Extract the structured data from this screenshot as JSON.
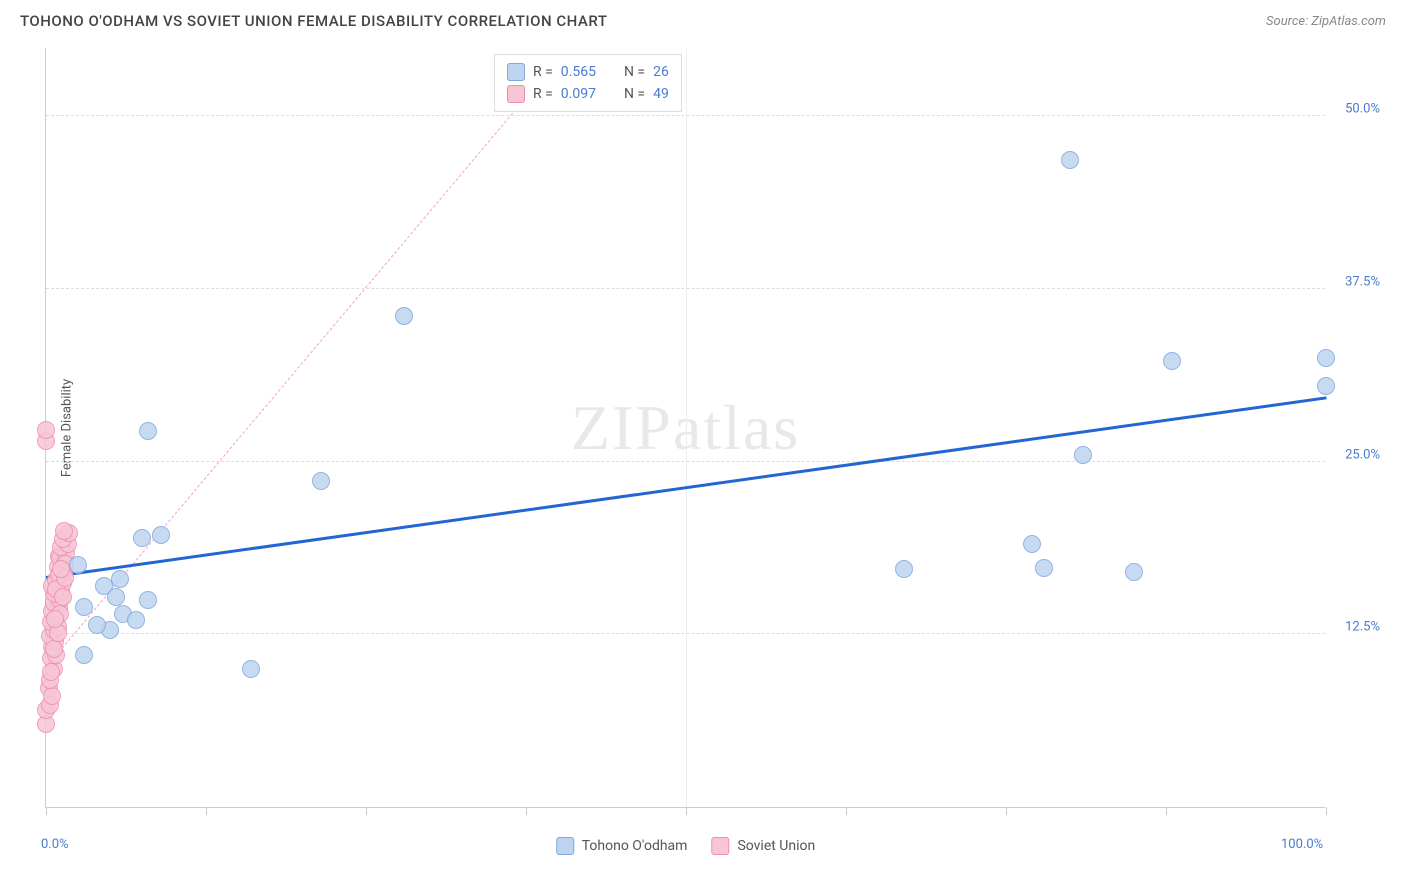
{
  "header": {
    "title": "TOHONO O'ODHAM VS SOVIET UNION FEMALE DISABILITY CORRELATION CHART",
    "source": "Source: ZipAtlas.com"
  },
  "chart": {
    "type": "scatter",
    "ylabel": "Female Disability",
    "watermark_zip": "ZIP",
    "watermark_atlas": "atlas",
    "xlim": [
      0,
      100
    ],
    "ylim": [
      0,
      55
    ],
    "x_ticks": [
      0,
      12.5,
      25,
      37.5,
      50,
      62.5,
      75,
      87.5,
      100
    ],
    "x_tick_labels": {
      "0": "0.0%",
      "100": "100.0%"
    },
    "y_gridlines": [
      12.5,
      25,
      37.5,
      50
    ],
    "y_tick_labels": {
      "12.5": "12.5%",
      "25": "25.0%",
      "37.5": "37.5%",
      "50": "50.0%"
    },
    "colors": {
      "series_a_fill": "#bdd4f0",
      "series_a_stroke": "#7fa8dd",
      "series_b_fill": "#f7c5d4",
      "series_b_stroke": "#ef8fb0",
      "trend_a": "#2166d1",
      "trend_b": "#f5a4bd",
      "grid": "#dddddd",
      "axis": "#cccccc",
      "label_text": "#4a7bd0",
      "background": "#ffffff"
    },
    "marker_radius": 9,
    "marker_stroke_width": 1.5,
    "series_a": {
      "name": "Tohono O'odham",
      "R": "0.565",
      "N": "26",
      "points": [
        [
          3,
          11
        ],
        [
          5,
          12.8
        ],
        [
          6,
          14
        ],
        [
          7,
          13.5
        ],
        [
          4.5,
          16
        ],
        [
          5.5,
          15.2
        ],
        [
          8,
          15
        ],
        [
          2.5,
          17.5
        ],
        [
          7.5,
          19.5
        ],
        [
          9,
          19.7
        ],
        [
          8,
          27.2
        ],
        [
          16,
          10
        ],
        [
          21.5,
          23.6
        ],
        [
          28,
          35.5
        ],
        [
          67,
          17.2
        ],
        [
          77,
          19
        ],
        [
          78,
          17.3
        ],
        [
          85,
          17
        ],
        [
          81,
          25.5
        ],
        [
          88,
          32.3
        ],
        [
          80,
          46.8
        ],
        [
          100,
          32.5
        ],
        [
          100,
          30.5
        ],
        [
          3,
          14.5
        ],
        [
          4,
          13.2
        ],
        [
          5.8,
          16.5
        ]
      ],
      "trend": {
        "x1": 0,
        "y1": 16.5,
        "x2": 100,
        "y2": 29.5
      }
    },
    "series_b": {
      "name": "Soviet Union",
      "R": "0.097",
      "N": "49",
      "points": [
        [
          0,
          6
        ],
        [
          0,
          7
        ],
        [
          0.3,
          7.4
        ],
        [
          0.2,
          8.6
        ],
        [
          0.5,
          8
        ],
        [
          0.3,
          9.2
        ],
        [
          0.6,
          10
        ],
        [
          0.4,
          10.8
        ],
        [
          0.8,
          11
        ],
        [
          0.5,
          11.6
        ],
        [
          0.7,
          12
        ],
        [
          0.3,
          12.4
        ],
        [
          0.6,
          12.8
        ],
        [
          0.9,
          13
        ],
        [
          0.4,
          13.4
        ],
        [
          0.8,
          13.8
        ],
        [
          0.5,
          14.2
        ],
        [
          1,
          14.4
        ],
        [
          0.6,
          14.8
        ],
        [
          1.1,
          15
        ],
        [
          0.7,
          15.4
        ],
        [
          1.2,
          15.6
        ],
        [
          0.5,
          16
        ],
        [
          1.3,
          16.2
        ],
        [
          0.8,
          16.4
        ],
        [
          1,
          18.2
        ],
        [
          1.4,
          17
        ],
        [
          0.9,
          17.4
        ],
        [
          1.5,
          17.8
        ],
        [
          1.1,
          18
        ],
        [
          1.6,
          18.4
        ],
        [
          1.2,
          18.8
        ],
        [
          1.7,
          19
        ],
        [
          1.3,
          19.4
        ],
        [
          1.8,
          19.8
        ],
        [
          1.4,
          20
        ],
        [
          1.5,
          17.6
        ],
        [
          1,
          16.8
        ],
        [
          0.8,
          15.8
        ],
        [
          0,
          26.5
        ],
        [
          0,
          27.3
        ],
        [
          0.4,
          9.8
        ],
        [
          0.6,
          11.4
        ],
        [
          0.9,
          12.6
        ],
        [
          1.1,
          14
        ],
        [
          1.3,
          15.2
        ],
        [
          1.5,
          16.6
        ],
        [
          0.7,
          13.6
        ],
        [
          1.2,
          17.2
        ]
      ],
      "trend": {
        "x1": 0,
        "y1": 10,
        "x2": 40,
        "y2": 54
      }
    },
    "legend": {
      "R_label": "R =",
      "N_label": "N ="
    },
    "bottom_legend": {
      "a": "Tohono O'odham",
      "b": "Soviet Union"
    }
  }
}
